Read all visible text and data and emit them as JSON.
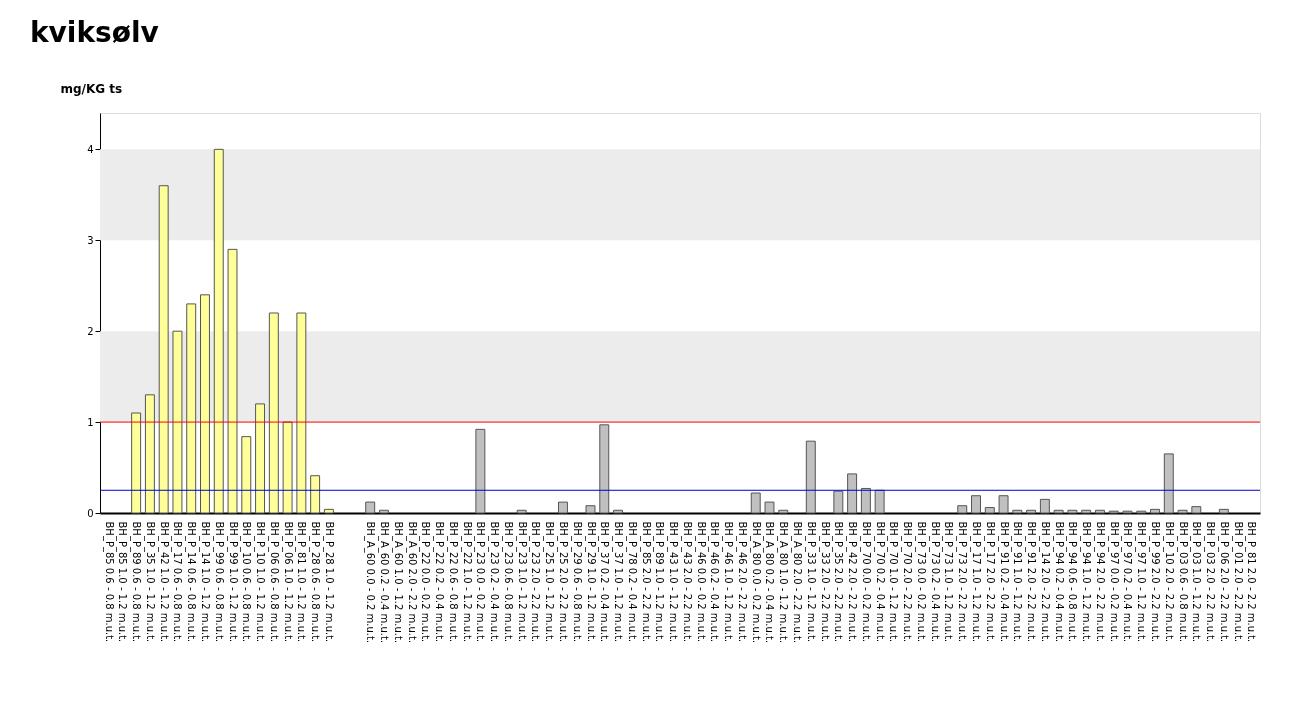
{
  "chart_data": {
    "type": "bar",
    "title": "kviksølv",
    "ylabel": "mg/KG ts",
    "categories": [
      "BH_P_85 0.6 - 0.8 m.u.t.",
      "BH_P_85 1.0 - 1.2 m.u.t.",
      "BH_P_89 0.6 - 0.8 m.u.t.",
      "BH_P_35 1.0 - 1.2 m.u.t.",
      "BH_P_42 1.0 - 1.2 m.u.t.",
      "BH_P_17 0.6 - 0.8 m.u.t.",
      "BH_P_14 0.6 - 0.8 m.u.t.",
      "BH_P_14 1.0 - 1.2 m.u.t.",
      "BH_P_99 0.6 - 0.8 m.u.t.",
      "BH_P_99 1.0 - 1.2 m.u.t.",
      "BH_P_10 0.6 - 0.8 m.u.t.",
      "BH_P_10 1.0 - 1.2 m.u.t.",
      "BH_P_06 0.6 - 0.8 m.u.t.",
      "BH_P_06 1.0 - 1.2 m.u.t.",
      "BH_P_81 1.0 - 1.2 m.u.t.",
      "BH_P_28 0.6 - 0.8 m.u.t.",
      "BH_P_28 1.0 - 1.2 m.u.t.",
      null,
      null,
      "BH_A_60 0.0 - 0.2 m.u.t.",
      "BH_A_60 0.2 - 0.4 m.u.t.",
      "BH_A_60 1.0 - 1.2 m.u.t.",
      "BH_A_60 2.0 - 2.2 m.u.t.",
      "BH_P_22 0.0 - 0.2 m.u.t.",
      "BH_P_22 0.2 - 0.4 m.u.t.",
      "BH_P_22 0.6 - 0.8 m.u.t.",
      "BH_P_22 1.0 - 1.2 m.u.t.",
      "BH_P_23 0.0 - 0.2 m.u.t.",
      "BH_P_23 0.2 - 0.4 m.u.t.",
      "BH_P_23 0.6 - 0.8 m.u.t.",
      "BH_P_23 1.0 - 1.2 m.u.t.",
      "BH_P_23 2.0 - 2.2 m.u.t.",
      "BH_P_25 1.0 - 1.2 m.u.t.",
      "BH_P_25 2.0 - 2.2 m.u.t.",
      "BH_P_29 0.6 - 0.8 m.u.t.",
      "BH_P_29 1.0 - 1.2 m.u.t.",
      "BH_P_37 0.2 - 0.4 m.u.t.",
      "BH_P_37 1.0 - 1.2 m.u.t.",
      "BH_P_78 0.2 - 0.4 m.u.t.",
      "BH_P_85 2.0 - 2.2 m.u.t.",
      "BH_P_89 1.0 - 1.2 m.u.t.",
      "BH_P_43 1.0 - 1.2 m.u.t.",
      "BH_P_43 2.0 - 2.2 m.u.t.",
      "BH_P_46 0.0 - 0.2 m.u.t.",
      "BH_P_46 0.2 - 0.4 m.u.t.",
      "BH_P_46 1.0 - 1.2 m.u.t.",
      "BH_P_46 2.0 - 2.2 m.u.t.",
      "BH_A_80 0.0 - 0.2 m.u.t.",
      "BH_A_80 0.2 - 0.4 m.u.t.",
      "BH_A_80 1.0 - 1.2 m.u.t.",
      "BH_A_80 2.0 - 2.2 m.u.t.",
      "BH_P_33 1.0 - 1.2 m.u.t.",
      "BH_P_33 2.0 - 2.2 m.u.t.",
      "BH_P_35 2.0 - 2.2 m.u.t.",
      "BH_P_42 2.0 - 2.2 m.u.t.",
      "BH_P_70 0.0 - 0.2 m.u.t.",
      "BH_P_70 0.2 - 0.4 m.u.t.",
      "BH_P_70 1.0 - 1.2 m.u.t.",
      "BH_P_70 2.0 - 2.2 m.u.t.",
      "BH_P_73 0.0 - 0.2 m.u.t.",
      "BH_P_73 0.2 - 0.4 m.u.t.",
      "BH_P_73 1.0 - 1.2 m.u.t.",
      "BH_P_73 2.0 - 2.2 m.u.t.",
      "BH_P_17 1.0 - 1.2 m.u.t.",
      "BH_P_17 2.0 - 2.2 m.u.t.",
      "BH_P_91 0.2 - 0.4 m.u.t.",
      "BH_P_91 1.0 - 1.2 m.u.t.",
      "BH_P_91 2.0 - 2.2 m.u.t.",
      "BH_P_14 2.0 - 2.2 m.u.t.",
      "BH_P_94 0.2 - 0.4 m.u.t.",
      "BH_P_94 0.6 - 0.8 m.u.t.",
      "BH_P_94 1.0 - 1.2 m.u.t.",
      "BH_P_94 2.0 - 2.2 m.u.t.",
      "BH_P_97 0.0 - 0.2 m.u.t.",
      "BH_P_97 0.2 - 0.4 m.u.t.",
      "BH_P_97 1.0 - 1.2 m.u.t.",
      "BH_P_99 2.0 - 2.2 m.u.t.",
      "BH_P_10 2.0 - 2.2 m.u.t.",
      "BH_P_03 0.6 - 0.8 m.u.t.",
      "BH_P_03 1.0 - 1.2 m.u.t.",
      "BH_P_03 2.0 - 2.2 m.u.t.",
      "BH_P_06 2.0 - 2.2 m.u.t.",
      "BH_P_01 2.0 - 2.2 m.u.t.",
      "BH_P_81 2.0 - 2.2 m.u.t."
    ],
    "values": [
      null,
      null,
      1.1,
      1.3,
      3.6,
      2.0,
      2.3,
      2.4,
      4.0,
      2.9,
      0.84,
      1.2,
      2.2,
      1.0,
      2.2,
      0.41,
      0.04,
      null,
      null,
      0.12,
      0.03,
      null,
      null,
      null,
      null,
      null,
      null,
      0.92,
      null,
      null,
      0.03,
      null,
      null,
      0.12,
      null,
      0.08,
      0.97,
      0.03,
      null,
      null,
      null,
      null,
      null,
      null,
      null,
      null,
      null,
      0.22,
      0.12,
      0.03,
      null,
      0.79,
      null,
      0.24,
      0.43,
      0.27,
      0.25,
      null,
      null,
      null,
      null,
      null,
      0.08,
      0.19,
      0.06,
      0.19,
      0.03,
      0.03,
      0.15,
      0.03,
      0.03,
      0.03,
      0.03,
      0.02,
      0.02,
      0.02,
      0.04,
      0.65,
      0.03,
      0.07,
      null,
      0.04,
      null,
      null
    ],
    "colors": [
      "#ffff99",
      "#ffff99",
      "#ffff99",
      "#ffff99",
      "#ffff99",
      "#ffff99",
      "#ffff99",
      "#ffff99",
      "#ffff99",
      "#ffff99",
      "#ffff99",
      "#ffff99",
      "#ffff99",
      "#ffff99",
      "#ffff99",
      "#ffff99",
      "#ffff99",
      "#c0c0c0",
      "#c0c0c0",
      "#c0c0c0",
      "#c0c0c0",
      "#c0c0c0",
      "#c0c0c0",
      "#c0c0c0",
      "#c0c0c0",
      "#c0c0c0",
      "#c0c0c0",
      "#c0c0c0",
      "#c0c0c0",
      "#c0c0c0",
      "#c0c0c0",
      "#c0c0c0",
      "#c0c0c0",
      "#c0c0c0",
      "#c0c0c0",
      "#c0c0c0",
      "#c0c0c0",
      "#c0c0c0",
      "#c0c0c0",
      "#c0c0c0",
      "#c0c0c0",
      "#c0c0c0",
      "#c0c0c0",
      "#c0c0c0",
      "#c0c0c0",
      "#c0c0c0",
      "#c0c0c0",
      "#c0c0c0",
      "#c0c0c0",
      "#c0c0c0",
      "#c0c0c0",
      "#c0c0c0",
      "#c0c0c0",
      "#c0c0c0",
      "#c0c0c0",
      "#c0c0c0",
      "#c0c0c0",
      "#c0c0c0",
      "#c0c0c0",
      "#c0c0c0",
      "#c0c0c0",
      "#c0c0c0",
      "#c0c0c0",
      "#c0c0c0",
      "#c0c0c0",
      "#c0c0c0",
      "#c0c0c0",
      "#c0c0c0",
      "#c0c0c0",
      "#c0c0c0",
      "#c0c0c0",
      "#c0c0c0",
      "#c0c0c0",
      "#c0c0c0",
      "#c0c0c0",
      "#c0c0c0",
      "#c0c0c0",
      "#c0c0c0",
      "#c0c0c0",
      "#c0c0c0",
      "#c0c0c0",
      "#c0c0c0",
      "#c0c0c0",
      "#c0c0c0"
    ],
    "ylim": [
      0,
      4.4
    ],
    "yticks": [
      0,
      1,
      2,
      3,
      4
    ],
    "grid": false,
    "bands": [
      {
        "axis": "y",
        "from": 1,
        "to": 2,
        "color": "#ececec"
      },
      {
        "axis": "y",
        "from": 3,
        "to": 4,
        "color": "#ececec"
      }
    ],
    "ref_lines": [
      {
        "axis": "y",
        "value": 1,
        "color": "#ff0000"
      },
      {
        "axis": "y",
        "value": 0.25,
        "color": "#0000cc"
      }
    ]
  }
}
